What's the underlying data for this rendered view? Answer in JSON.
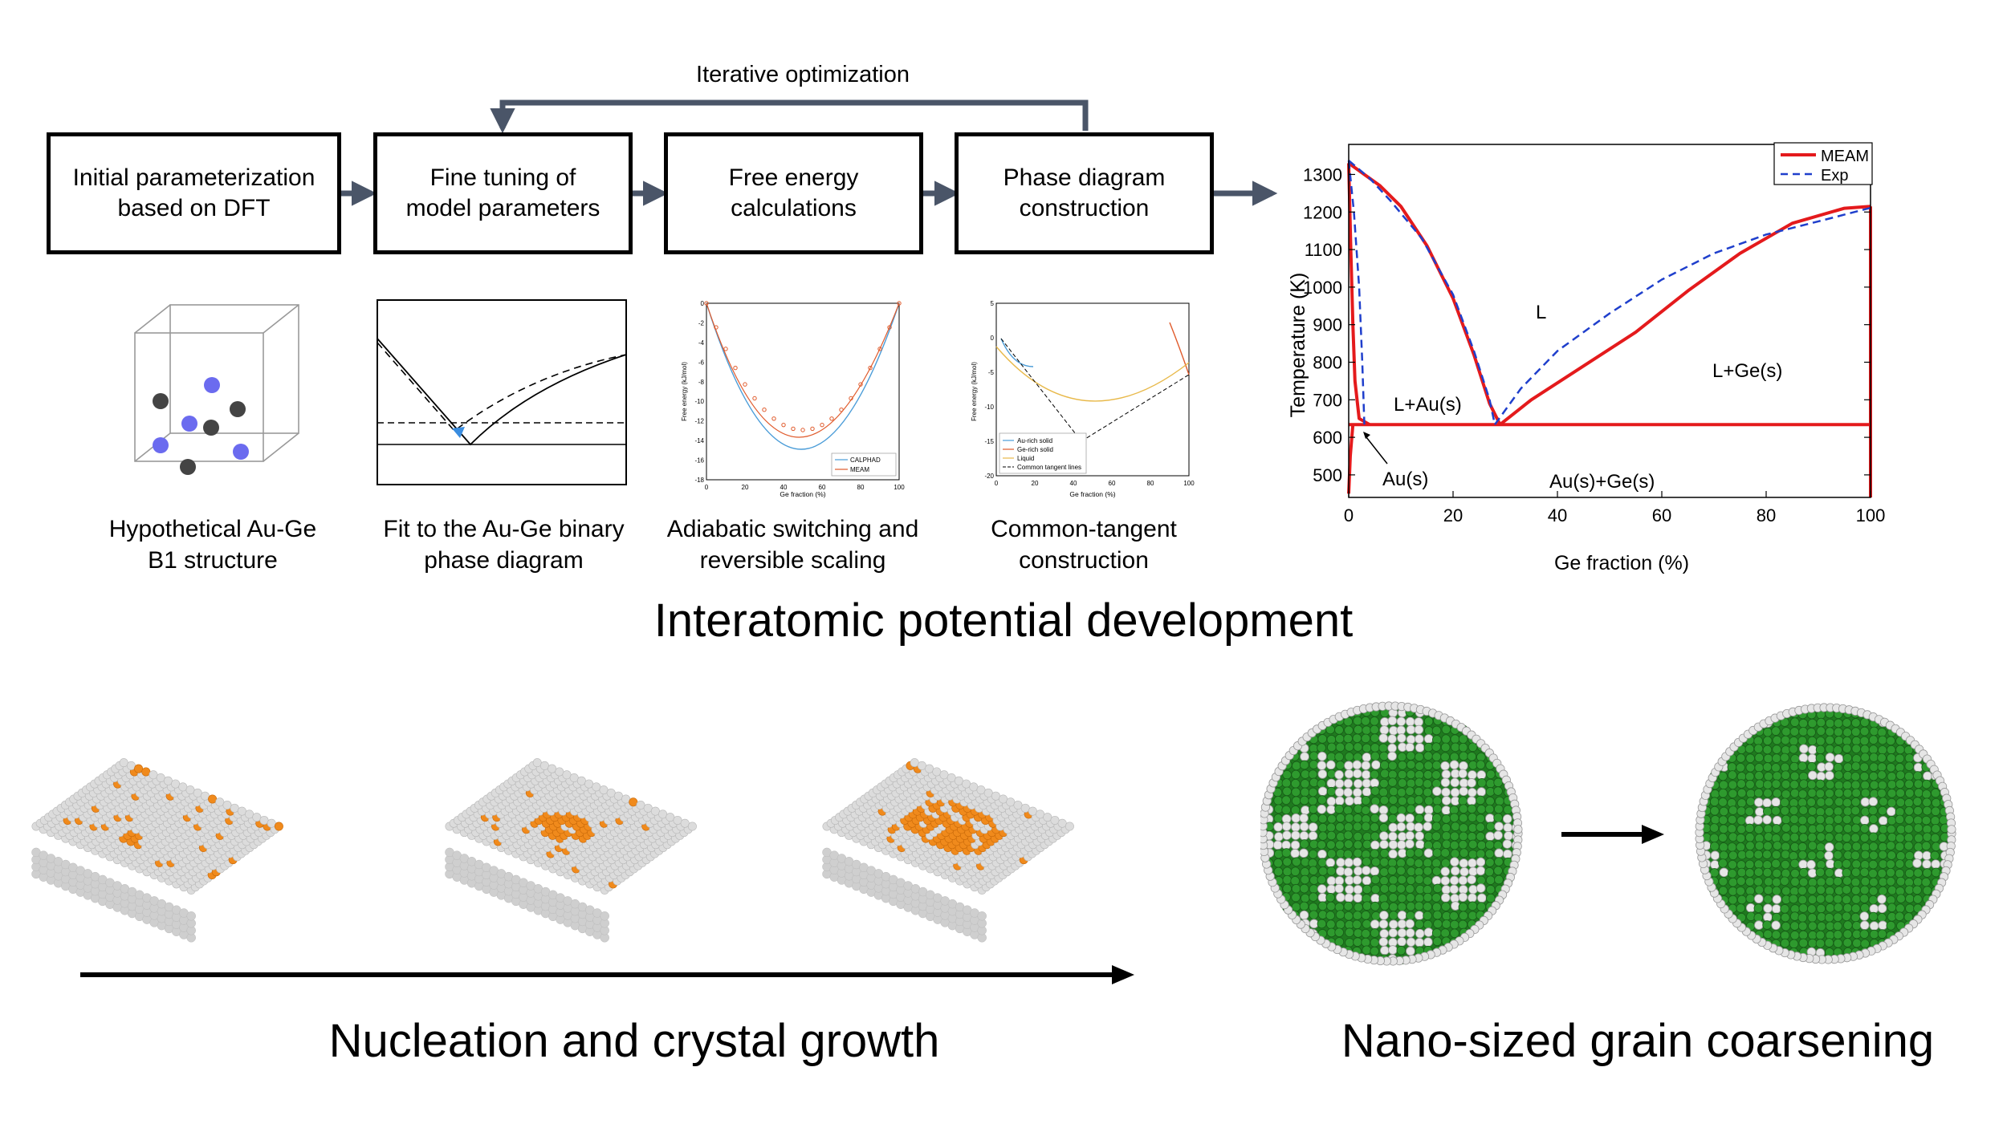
{
  "workflow": {
    "loop_label": "Iterative optimization",
    "steps": [
      {
        "label": "Initial parameterization\nbased on DFT"
      },
      {
        "label": "Fine tuning of\nmodel parameters"
      },
      {
        "label": "Free energy\ncalculations"
      },
      {
        "label": "Phase diagram\nconstruction"
      }
    ],
    "arrow_color": "#4a5568"
  },
  "thumbnails": [
    {
      "caption": "Hypothetical Au-Ge\nB1 structure"
    },
    {
      "caption": "Fit to the Au-Ge binary\nphase diagram"
    },
    {
      "caption": "Adiabatic switching and\nreversible scaling"
    },
    {
      "caption": "Common-tangent\nconstruction"
    }
  ],
  "free_energy_plot": {
    "ylabel": "Free energy (kJ/mol)",
    "xlabel": "Ge fraction (%)",
    "xticks": [
      "0",
      "20",
      "40",
      "60",
      "80",
      "100"
    ],
    "yticks": [
      "0",
      "-2",
      "-4",
      "-6",
      "-8",
      "-10",
      "-12",
      "-14",
      "-16",
      "-18"
    ],
    "legend": [
      "CALPHAD",
      "MEAM"
    ]
  },
  "tangent_plot": {
    "ylabel": "Free energy (kJ/mol)",
    "xlabel": "Ge fraction (%)",
    "xticks": [
      "0",
      "20",
      "40",
      "60",
      "80",
      "100"
    ],
    "yticks": [
      "5",
      "0",
      "-5",
      "-10",
      "-15",
      "-20"
    ],
    "legend": [
      "Au-rich solid",
      "Ge-rich solid",
      "Liquid",
      "Common tangent lines"
    ]
  },
  "sections": {
    "potential": "Interatomic potential development",
    "nucleation": "Nucleation and crystal growth",
    "coarsening": "Nano-sized grain coarsening"
  },
  "chart_data": {
    "type": "line",
    "title": "",
    "xlabel": "Ge fraction (%)",
    "ylabel": "Temperature (K)",
    "xlim": [
      0,
      100
    ],
    "ylim": [
      440,
      1380
    ],
    "xticks": [
      0,
      20,
      40,
      60,
      80,
      100
    ],
    "yticks": [
      500,
      600,
      700,
      800,
      900,
      1000,
      1100,
      1200,
      1300
    ],
    "legend_position": "top-right",
    "series": [
      {
        "name": "MEAM",
        "color": "#e41a1c",
        "style": "solid",
        "liquidus_left": [
          [
            0,
            1330
          ],
          [
            3,
            1300
          ],
          [
            6,
            1270
          ],
          [
            10,
            1215
          ],
          [
            15,
            1110
          ],
          [
            20,
            970
          ],
          [
            24,
            820
          ],
          [
            27,
            690
          ],
          [
            29,
            634
          ]
        ],
        "liquidus_right": [
          [
            29,
            634
          ],
          [
            35,
            700
          ],
          [
            45,
            790
          ],
          [
            55,
            880
          ],
          [
            65,
            990
          ],
          [
            75,
            1090
          ],
          [
            85,
            1170
          ],
          [
            95,
            1210
          ],
          [
            100,
            1215
          ]
        ],
        "solidus_left": [
          [
            0,
            1330
          ],
          [
            0.4,
            1100
          ],
          [
            0.8,
            900
          ],
          [
            1.2,
            750
          ],
          [
            2,
            650
          ],
          [
            4,
            634
          ]
        ],
        "low_left": [
          [
            0,
            450
          ],
          [
            0.3,
            550
          ],
          [
            0.8,
            634
          ]
        ],
        "eutectic": [
          [
            0,
            634
          ],
          [
            100,
            634
          ]
        ],
        "right_wall": [
          [
            100,
            1215
          ],
          [
            100,
            440
          ]
        ]
      },
      {
        "name": "Exp",
        "color": "#1f3fcc",
        "style": "dashed",
        "liquidus_left": [
          [
            0,
            1337
          ],
          [
            4,
            1290
          ],
          [
            8,
            1230
          ],
          [
            14,
            1130
          ],
          [
            20,
            980
          ],
          [
            24,
            830
          ],
          [
            27,
            700
          ],
          [
            28,
            634
          ]
        ],
        "liquidus_right": [
          [
            28,
            634
          ],
          [
            33,
            730
          ],
          [
            40,
            830
          ],
          [
            50,
            930
          ],
          [
            60,
            1020
          ],
          [
            70,
            1090
          ],
          [
            80,
            1140
          ],
          [
            90,
            1175
          ],
          [
            100,
            1211
          ]
        ],
        "solidus_left": [
          [
            0,
            1337
          ],
          [
            1,
            1200
          ],
          [
            2,
            1000
          ],
          [
            2.6,
            800
          ],
          [
            3,
            634
          ]
        ]
      }
    ],
    "region_labels": [
      "L",
      "L+Au(s)",
      "L+Ge(s)",
      "Au(s)",
      "Au(s)+Ge(s)"
    ]
  }
}
